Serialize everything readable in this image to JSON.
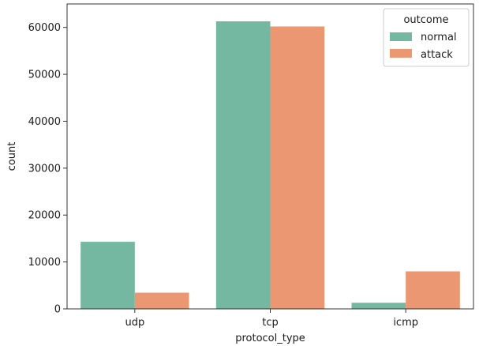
{
  "chart_data": {
    "type": "bar",
    "categories": [
      "udp",
      "tcp",
      "icmp"
    ],
    "series": [
      {
        "name": "normal",
        "values": [
          14300,
          61300,
          1300
        ],
        "color": "#74b8a2"
      },
      {
        "name": "attack",
        "values": [
          3450,
          60200,
          8000
        ],
        "color": "#ea9772"
      }
    ],
    "title": "",
    "xlabel": "protocol_type",
    "ylabel": "count",
    "ylim": [
      0,
      65000
    ],
    "yticks": [
      0,
      10000,
      20000,
      30000,
      40000,
      50000,
      60000
    ],
    "legend": {
      "title": "outcome",
      "placement": "top-right"
    },
    "grid": false
  }
}
